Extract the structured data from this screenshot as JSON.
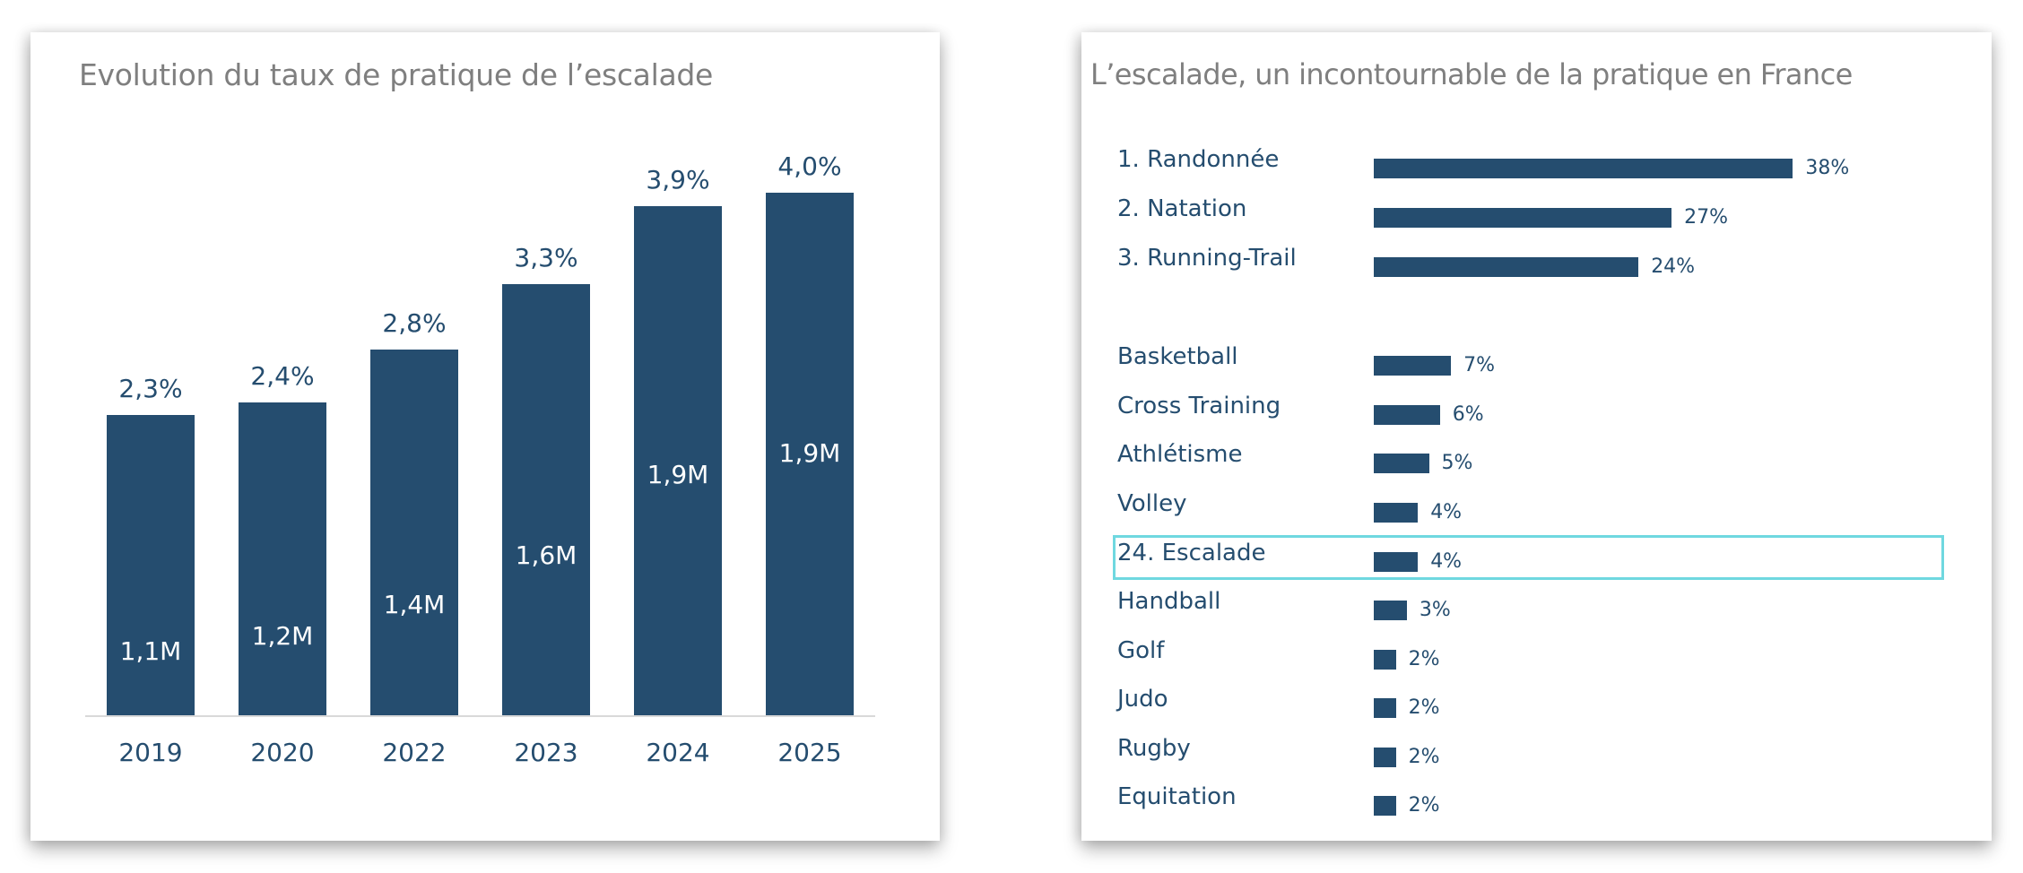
{
  "colors": {
    "bar": "#254d6f",
    "title": "#7f7f7f",
    "highlight": "#6fd8e0",
    "axis": "#d9d9d9"
  },
  "chart_data": [
    {
      "type": "bar",
      "title": "Evolution du taux de pratique de l’escalade",
      "xlabel": "",
      "ylabel": "",
      "categories": [
        "2019",
        "2020",
        "2022",
        "2023",
        "2024",
        "2025"
      ],
      "values": [
        2.3,
        2.4,
        2.8,
        3.3,
        3.9,
        4.0
      ],
      "value_labels": [
        "2,3%",
        "2,4%",
        "2,8%",
        "3,3%",
        "3,9%",
        "4,0%"
      ],
      "inner_labels": [
        "1,1M",
        "1,2M",
        "1,4M",
        "1,6M",
        "1,9M",
        "1,9M"
      ],
      "unit": "%",
      "ylim": [
        0,
        4.0
      ],
      "grid": false,
      "legend": "none"
    },
    {
      "type": "bar",
      "orientation": "horizontal",
      "title": "L’escalade, un incontournable de la pratique en France",
      "categories": [
        "1. Randonnée",
        "2. Natation",
        "3. Running-Trail",
        "Basketball",
        "Cross Training",
        "Athlétisme",
        "Volley",
        "24. Escalade",
        "Handball",
        "Golf",
        "Judo",
        "Rugby",
        "Equitation"
      ],
      "values": [
        38,
        27,
        24,
        7,
        6,
        5,
        4,
        4,
        3,
        2,
        2,
        2,
        2
      ],
      "value_labels": [
        "38%",
        "27%",
        "24%",
        "7%",
        "6%",
        "5%",
        "4%",
        "4%",
        "3%",
        "2%",
        "2%",
        "2%",
        "2%"
      ],
      "highlighted": "24. Escalade",
      "unit": "%",
      "grid": false,
      "legend": "none"
    }
  ]
}
